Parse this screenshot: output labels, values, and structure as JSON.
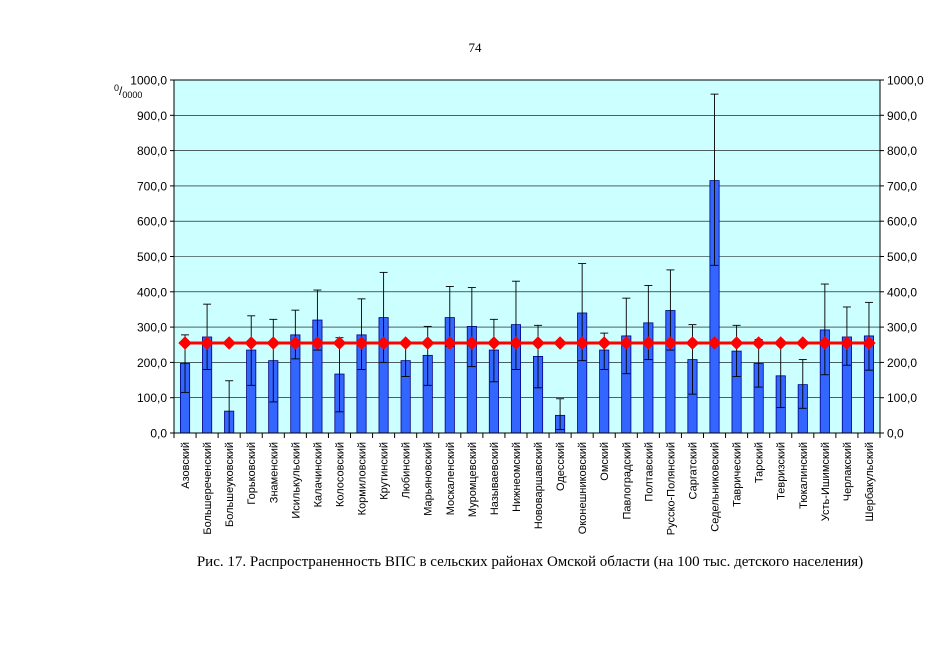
{
  "page_number": "74",
  "caption": "Рис. 17. Распространенность ВПС в сельских районах Омской области (на 100 тыс. детского населения)",
  "colors": {
    "plot_bg": "#ccffff",
    "bar_fill": "#3366ff",
    "bar_stroke": "#000080",
    "mean_line": "#ff0000"
  },
  "chart_data": {
    "type": "bar",
    "unit_label": "0/0000",
    "ylim": [
      0,
      1000
    ],
    "y_ticks": [
      "0,0",
      "100,0",
      "200,0",
      "300,0",
      "400,0",
      "500,0",
      "600,0",
      "700,0",
      "800,0",
      "900,0",
      "1000,0"
    ],
    "grid": true,
    "categories": [
      "Азовский",
      "Большереченский",
      "Большеуковский",
      "Горьковский",
      "Знаменский",
      "Исилькульский",
      "Калачинский",
      "Колосовский",
      "Кормиловский",
      "Крутинский",
      "Любинский",
      "Марьяновский",
      "Москаленский",
      "Муромцевский",
      "Называевский",
      "Нижнеомский",
      "Нововаршавский",
      "Одесский",
      "Оконешниковский",
      "Омский",
      "Павлоградский",
      "Полтавский",
      "Русско-Полянский",
      "Саргатский",
      "Седельниковский",
      "Таврический",
      "Тарский",
      "Тевризский",
      "Тюкалинский",
      "Усть-Ишимский",
      "Черлакский",
      "Шербакульский"
    ],
    "series": [
      {
        "type": "bar",
        "values": [
          197,
          272,
          62,
          235,
          205,
          278,
          320,
          167,
          278,
          327,
          205,
          220,
          327,
          302,
          235,
          307,
          217,
          50,
          340,
          235,
          275,
          312,
          347,
          208,
          715,
          232,
          197,
          162,
          137,
          292,
          272,
          275
        ],
        "error_low": [
          115,
          180,
          0,
          135,
          88,
          210,
          235,
          60,
          180,
          200,
          160,
          135,
          245,
          188,
          145,
          180,
          128,
          10,
          205,
          180,
          168,
          208,
          235,
          110,
          475,
          160,
          130,
          72,
          70,
          165,
          192,
          178
        ],
        "error_high": [
          278,
          365,
          148,
          332,
          322,
          348,
          405,
          270,
          380,
          455,
          255,
          302,
          415,
          412,
          322,
          430,
          305,
          97,
          480,
          283,
          382,
          418,
          462,
          307,
          960,
          305,
          265,
          250,
          208,
          422,
          357,
          370
        ]
      },
      {
        "type": "line",
        "constant_value": 255
      }
    ]
  }
}
